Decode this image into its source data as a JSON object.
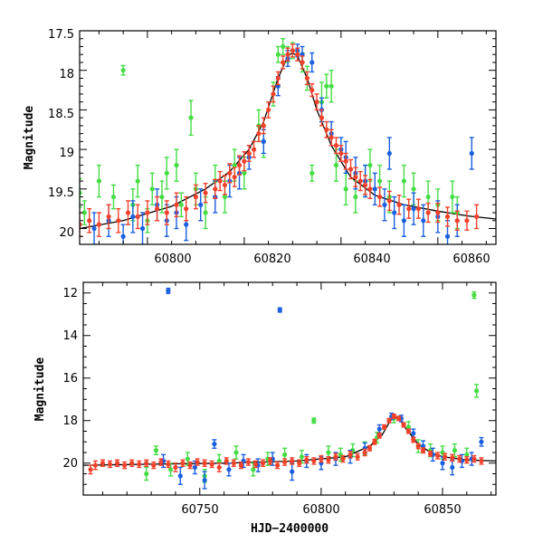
{
  "colors": {
    "green": "#44dd44",
    "blue": "#1a5fe0",
    "red": "#f2412a",
    "model": "#000000"
  },
  "chart_data": [
    {
      "type": "scatter",
      "title": "",
      "xlabel": "",
      "ylabel": "Magnitude",
      "xlim": [
        60786,
        60872
      ],
      "ylim": [
        20.2,
        17.5
      ],
      "y_inverted": true,
      "xticks": [
        60800,
        60820,
        60840,
        60860
      ],
      "yticks": [
        17.5,
        18,
        18.5,
        19,
        19.5,
        20
      ],
      "xtick_labels": [
        "60800",
        "60820",
        "60840",
        "60860"
      ],
      "ytick_labels": [
        "17.5",
        "18",
        "18.5",
        "19",
        "19.5",
        "20"
      ],
      "model": {
        "x": [
          60786,
          60795,
          60805,
          60812,
          60817,
          60821,
          60824,
          60827,
          60829,
          60830,
          60831,
          60833,
          60835,
          60838,
          60842,
          60847,
          60853,
          60860,
          60866,
          60872
        ],
        "y": [
          20.0,
          19.9,
          19.72,
          19.5,
          19.28,
          19.0,
          18.65,
          18.1,
          17.82,
          17.78,
          17.82,
          18.1,
          18.5,
          18.95,
          19.35,
          19.58,
          19.7,
          19.78,
          19.84,
          19.88
        ]
      },
      "series": [
        {
          "color_key": "green",
          "x": [
            60786,
            60787,
            60790,
            60793,
            60795,
            60797,
            60798,
            60800,
            60801,
            60803,
            60804,
            60806,
            60807,
            60809,
            60810,
            60812,
            60814,
            60816,
            60818,
            60820,
            60823,
            60824,
            60826,
            60827,
            60828,
            60829,
            60830,
            60832,
            60833,
            60834,
            60836,
            60837,
            60838,
            60839,
            60841,
            60843,
            60845,
            60846,
            60848,
            60850,
            60853,
            60855,
            60858,
            60860,
            60863,
            60864
          ],
          "y": [
            19.55,
            19.8,
            19.4,
            19.6,
            18.0,
            19.7,
            19.4,
            19.9,
            19.5,
            19.6,
            19.3,
            19.2,
            19.7,
            18.6,
            19.5,
            19.8,
            19.4,
            19.6,
            19.2,
            19.3,
            18.7,
            18.9,
            18.3,
            17.8,
            17.7,
            17.8,
            17.75,
            17.9,
            18.1,
            19.3,
            18.4,
            18.2,
            18.2,
            19.2,
            19.5,
            19.6,
            19.4,
            19.2,
            19.4,
            19.6,
            19.4,
            19.5,
            19.6,
            19.7,
            19.6,
            19.8
          ],
          "err": [
            0.18,
            0.15,
            0.2,
            0.15,
            0.06,
            0.2,
            0.2,
            0.15,
            0.2,
            0.2,
            0.2,
            0.2,
            0.15,
            0.22,
            0.2,
            0.2,
            0.2,
            0.2,
            0.2,
            0.2,
            0.2,
            0.2,
            0.15,
            0.1,
            0.1,
            0.1,
            0.1,
            0.12,
            0.15,
            0.1,
            0.25,
            0.15,
            0.2,
            0.2,
            0.2,
            0.2,
            0.2,
            0.2,
            0.2,
            0.2,
            0.2,
            0.2,
            0.2,
            0.2,
            0.2,
            0.2
          ]
        },
        {
          "color_key": "blue",
          "x": [
            60789,
            60792,
            60795,
            60797,
            60799,
            60802,
            60804,
            60806,
            60808,
            60811,
            60814,
            60817,
            60819,
            60821,
            60824,
            60827,
            60829,
            60831,
            60832,
            60834,
            60836,
            60838,
            60840,
            60841,
            60843,
            60845,
            60847,
            60849,
            60850,
            60851,
            60853,
            60855,
            60857,
            60860,
            60862,
            60864,
            60867
          ],
          "y": [
            20.0,
            19.9,
            20.1,
            19.85,
            20.0,
            19.7,
            19.9,
            19.8,
            19.95,
            19.7,
            19.6,
            19.4,
            19.3,
            19.1,
            18.9,
            18.2,
            17.85,
            17.75,
            17.8,
            17.9,
            18.5,
            18.8,
            19.0,
            19.1,
            19.3,
            19.4,
            19.5,
            19.7,
            19.05,
            19.8,
            19.9,
            19.75,
            19.9,
            19.85,
            20.1,
            19.9,
            19.05
          ],
          "err": [
            0.2,
            0.2,
            0.15,
            0.2,
            0.2,
            0.2,
            0.2,
            0.2,
            0.2,
            0.2,
            0.2,
            0.2,
            0.2,
            0.15,
            0.15,
            0.12,
            0.1,
            0.08,
            0.1,
            0.12,
            0.15,
            0.15,
            0.15,
            0.2,
            0.2,
            0.2,
            0.2,
            0.2,
            0.2,
            0.2,
            0.2,
            0.2,
            0.2,
            0.2,
            0.2,
            0.2,
            0.2
          ]
        },
        {
          "color_key": "red",
          "x": [
            60786,
            60788,
            60790,
            60792,
            60794,
            60796,
            60798,
            60800,
            60802,
            60804,
            60806,
            60808,
            60810,
            60812,
            60814,
            60815,
            60816,
            60817,
            60818,
            60819,
            60820,
            60821,
            60822,
            60823,
            60824,
            60825,
            60826,
            60827,
            60828,
            60829,
            60830,
            60831,
            60832,
            60833,
            60834,
            60835,
            60836,
            60837,
            60838,
            60839,
            60840,
            60841,
            60842,
            60843,
            60844,
            60845,
            60846,
            60848,
            60850,
            60852,
            60854,
            60856,
            60858,
            60860,
            60862,
            60864,
            60866,
            60868
          ],
          "y": [
            19.95,
            19.9,
            19.95,
            19.85,
            19.9,
            19.8,
            19.85,
            19.8,
            19.75,
            19.8,
            19.7,
            19.75,
            19.6,
            19.55,
            19.5,
            19.4,
            19.45,
            19.3,
            19.35,
            19.2,
            19.15,
            19.05,
            19.0,
            18.8,
            18.7,
            18.5,
            18.3,
            18.1,
            17.9,
            17.8,
            17.75,
            17.8,
            17.9,
            18.1,
            18.25,
            18.4,
            18.6,
            18.75,
            18.85,
            18.95,
            19.05,
            19.15,
            19.25,
            19.35,
            19.4,
            19.45,
            19.5,
            19.6,
            19.65,
            19.7,
            19.75,
            19.75,
            19.8,
            19.8,
            19.85,
            19.9,
            19.9,
            19.85
          ],
          "err": [
            0.15,
            0.15,
            0.15,
            0.15,
            0.15,
            0.15,
            0.15,
            0.15,
            0.15,
            0.15,
            0.15,
            0.15,
            0.15,
            0.12,
            0.12,
            0.12,
            0.12,
            0.12,
            0.12,
            0.12,
            0.12,
            0.1,
            0.1,
            0.1,
            0.1,
            0.1,
            0.1,
            0.08,
            0.08,
            0.08,
            0.08,
            0.08,
            0.08,
            0.08,
            0.08,
            0.1,
            0.1,
            0.1,
            0.1,
            0.1,
            0.1,
            0.1,
            0.12,
            0.12,
            0.12,
            0.12,
            0.12,
            0.12,
            0.12,
            0.12,
            0.12,
            0.12,
            0.12,
            0.12,
            0.12,
            0.12,
            0.12,
            0.15
          ]
        }
      ]
    },
    {
      "type": "scatter",
      "title": "",
      "xlabel": "HJD−2400000",
      "ylabel": "Magnitude",
      "xlim": [
        60702,
        60872
      ],
      "ylim": [
        21.5,
        11.5
      ],
      "y_inverted": true,
      "xticks": [
        60750,
        60800,
        60850
      ],
      "yticks": [
        12,
        14,
        16,
        18,
        20
      ],
      "xtick_labels": [
        "60750",
        "60800",
        "60850"
      ],
      "ytick_labels": [
        "12",
        "14",
        "16",
        "18",
        "20"
      ],
      "model": {
        "x": [
          60702,
          60730,
          60760,
          60790,
          60810,
          60820,
          60825,
          60828,
          60830,
          60832,
          60835,
          60840,
          60845,
          60850,
          60860,
          60872
        ],
        "y": [
          20.1,
          20.05,
          20.0,
          19.9,
          19.7,
          19.2,
          18.7,
          18.1,
          17.8,
          17.9,
          18.4,
          19.1,
          19.5,
          19.7,
          19.85,
          19.9
        ]
      },
      "series": [
        {
          "color_key": "green",
          "x": [
            60728,
            60732,
            60738,
            60745,
            60752,
            60758,
            60765,
            60772,
            60778,
            60785,
            60792,
            60797,
            60803,
            60808,
            60813,
            60818,
            60823,
            60830,
            60836,
            60840,
            60845,
            60850,
            60855,
            60860,
            60863,
            60864
          ],
          "y": [
            20.5,
            19.4,
            20.3,
            19.8,
            20.6,
            19.9,
            19.5,
            20.3,
            19.8,
            19.6,
            19.7,
            18.0,
            19.5,
            19.6,
            19.4,
            19.3,
            18.8,
            17.9,
            18.3,
            19.2,
            19.4,
            19.5,
            19.4,
            19.6,
            12.1,
            16.6
          ],
          "err": [
            0.3,
            0.2,
            0.3,
            0.3,
            0.3,
            0.3,
            0.3,
            0.3,
            0.3,
            0.3,
            0.3,
            0.12,
            0.3,
            0.3,
            0.3,
            0.3,
            0.25,
            0.2,
            0.25,
            0.3,
            0.3,
            0.3,
            0.3,
            0.3,
            0.15,
            0.3
          ]
        },
        {
          "color_key": "blue",
          "x": [
            60735,
            60737,
            60742,
            60748,
            60752,
            60756,
            60762,
            60768,
            60774,
            60780,
            60783,
            60788,
            60794,
            60800,
            60806,
            60812,
            60818,
            60824,
            60829,
            60833,
            60838,
            60842,
            60846,
            60850,
            60854,
            60858,
            60862,
            60866
          ],
          "y": [
            19.9,
            11.9,
            20.6,
            20.2,
            20.8,
            19.1,
            20.3,
            19.9,
            20.1,
            19.8,
            12.8,
            20.4,
            19.9,
            20.0,
            19.8,
            19.7,
            19.3,
            18.4,
            17.8,
            17.9,
            18.6,
            19.2,
            19.6,
            20.0,
            20.2,
            19.9,
            19.8,
            19.0
          ],
          "err": [
            0.3,
            0.12,
            0.4,
            0.3,
            0.4,
            0.2,
            0.3,
            0.3,
            0.3,
            0.3,
            0.1,
            0.4,
            0.3,
            0.3,
            0.3,
            0.3,
            0.25,
            0.2,
            0.15,
            0.15,
            0.2,
            0.25,
            0.3,
            0.3,
            0.35,
            0.3,
            0.3,
            0.2
          ]
        },
        {
          "color_key": "red",
          "x": [
            60705,
            60707,
            60710,
            60713,
            60716,
            60719,
            60722,
            60725,
            60728,
            60731,
            60734,
            60737,
            60740,
            60743,
            60746,
            60749,
            60752,
            60755,
            60758,
            60761,
            60764,
            60767,
            60770,
            60773,
            60776,
            60779,
            60782,
            60785,
            60788,
            60791,
            60794,
            60797,
            60800,
            60803,
            60806,
            60809,
            60812,
            60815,
            60818,
            60820,
            60822,
            60824,
            60826,
            60828,
            60830,
            60832,
            60834,
            60836,
            60838,
            60840,
            60842,
            60845,
            60848,
            60851,
            60854,
            60857,
            60860,
            60863,
            60866
          ],
          "y": [
            20.3,
            20.1,
            20.0,
            20.05,
            20.0,
            20.1,
            20.0,
            20.05,
            20.0,
            20.1,
            19.95,
            20.05,
            20.2,
            20.0,
            20.1,
            19.95,
            20.0,
            20.05,
            20.2,
            19.9,
            20.0,
            20.1,
            19.95,
            20.05,
            20.0,
            19.9,
            20.1,
            19.95,
            19.9,
            20.0,
            19.85,
            19.9,
            19.8,
            19.85,
            19.7,
            19.8,
            19.6,
            19.7,
            19.5,
            19.3,
            19.0,
            18.7,
            18.3,
            18.0,
            17.8,
            17.9,
            18.2,
            18.5,
            18.9,
            19.2,
            19.4,
            19.55,
            19.65,
            19.7,
            19.75,
            19.8,
            19.85,
            19.8,
            19.9
          ],
          "err": [
            0.2,
            0.2,
            0.15,
            0.15,
            0.15,
            0.15,
            0.15,
            0.15,
            0.15,
            0.15,
            0.15,
            0.15,
            0.2,
            0.15,
            0.15,
            0.15,
            0.15,
            0.15,
            0.2,
            0.15,
            0.15,
            0.15,
            0.15,
            0.15,
            0.15,
            0.15,
            0.15,
            0.15,
            0.15,
            0.15,
            0.15,
            0.15,
            0.15,
            0.15,
            0.15,
            0.15,
            0.15,
            0.15,
            0.15,
            0.12,
            0.12,
            0.12,
            0.1,
            0.1,
            0.1,
            0.1,
            0.1,
            0.1,
            0.12,
            0.12,
            0.12,
            0.12,
            0.15,
            0.15,
            0.15,
            0.15,
            0.15,
            0.15,
            0.15
          ]
        }
      ]
    }
  ]
}
